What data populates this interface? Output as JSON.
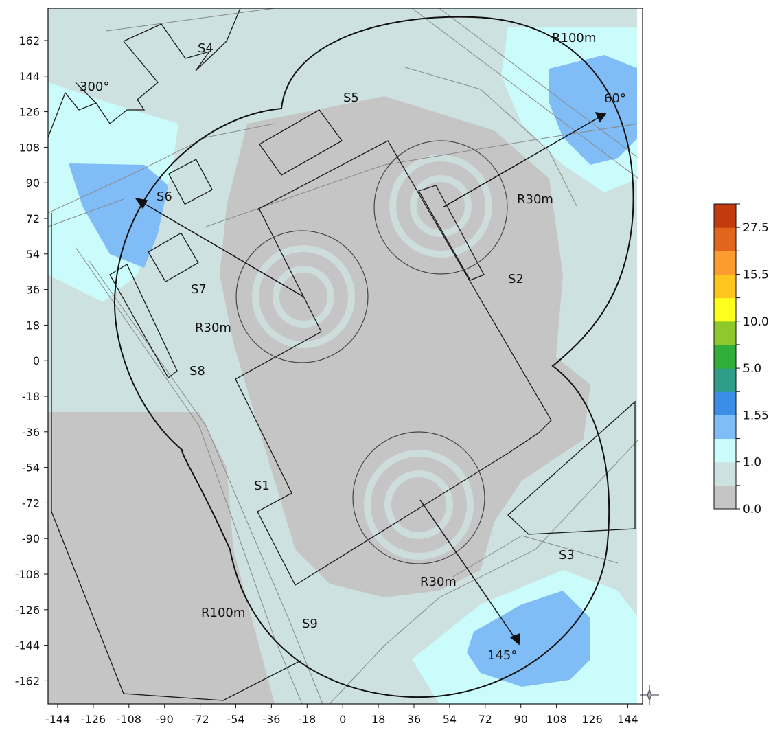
{
  "map": {
    "x_ticks": [
      "-144",
      "-126",
      "-108",
      "-90",
      "-72",
      "-54",
      "-36",
      "-18",
      "0",
      "18",
      "36",
      "54",
      "72",
      "90",
      "108",
      "126",
      "144"
    ],
    "y_ticks": [
      "162",
      "144",
      "126",
      "108",
      "90",
      "72",
      "54",
      "36",
      "18",
      "0",
      "-18",
      "-36",
      "-54",
      "-72",
      "-90",
      "-108",
      "-126",
      "-144",
      "-162"
    ],
    "labels": {
      "s1": "S1",
      "s2": "S2",
      "s3": "S3",
      "s4": "S4",
      "s5": "S5",
      "s6": "S6",
      "s7": "S7",
      "s8": "S8",
      "s9": "S9",
      "r100_top": "R100m",
      "r100_bottom": "R100m",
      "r30_left": "R30m",
      "r30_right": "R30m",
      "r30_bottom": "R30m",
      "angle_300": "300°",
      "angle_60": "60°",
      "angle_145": "145°"
    },
    "colors": {
      "bg_gray": "#c5c5c5",
      "pale_teal": "#cde2e0",
      "light_cyan": "#cafcfc",
      "light_blue": "#80bcf5",
      "mid_blue": "#3b8de6"
    }
  },
  "colorbar": {
    "tick_labels": [
      "27.5",
      "15.5",
      "10.0",
      "5.0",
      "1.55",
      "1.0",
      "0.0"
    ],
    "segments": [
      "#c5c5c5",
      "#cde2e0",
      "#cafcfc",
      "#80bcf5",
      "#3b8de6",
      "#2e9e88",
      "#2fae3a",
      "#8dc92a",
      "#fdfd1e",
      "#fdc51e",
      "#fd9c2e",
      "#e2651e",
      "#c23a0e"
    ]
  }
}
